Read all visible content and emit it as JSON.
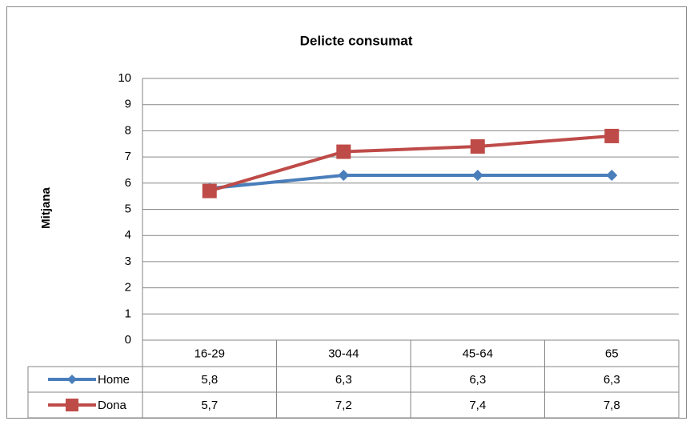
{
  "chart_data": {
    "type": "line",
    "title": "Delicte consumat",
    "y_label": "Mitjana",
    "categories": [
      "16-29",
      "30-44",
      "45-64",
      "65"
    ],
    "series": [
      {
        "name": "Home",
        "color": "#4a7ebb",
        "marker": "diamond",
        "values": [
          5.8,
          6.3,
          6.3,
          6.3
        ],
        "value_labels": [
          "5,8",
          "6,3",
          "6,3",
          "6,3"
        ]
      },
      {
        "name": "Dona",
        "color": "#be4b48",
        "marker": "square",
        "values": [
          5.7,
          7.2,
          7.4,
          7.8
        ],
        "value_labels": [
          "5,7",
          "7,2",
          "7,4",
          "7,8"
        ]
      }
    ],
    "ylim": [
      0,
      10
    ],
    "yticks": [
      0,
      1,
      2,
      3,
      4,
      5,
      6,
      7,
      8,
      9,
      10
    ],
    "grid": true
  }
}
